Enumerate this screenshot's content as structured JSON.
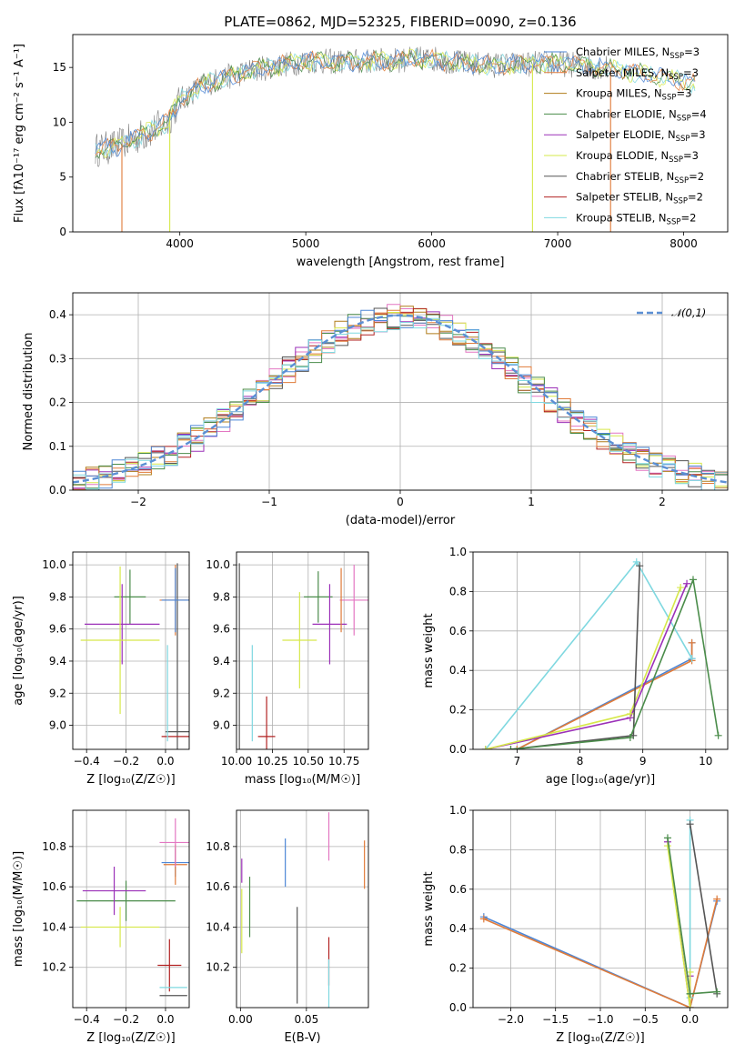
{
  "title": "PLATE=0862, MJD=52325, FIBERID=0090, z=0.136",
  "colors": [
    "#4c86d6",
    "#e07b39",
    "#b07c1a",
    "#4a8c4a",
    "#9b30b8",
    "#d6e84a",
    "#555555",
    "#b22222",
    "#7fd8e0",
    "#e377c2"
  ],
  "chart_data": [
    {
      "type": "line",
      "name": "spectrum",
      "xlabel": "wavelength [Angstrom, rest frame]",
      "ylabel": "Flux [fλ10⁻¹⁷ erg cm⁻² s⁻¹ A⁻¹]",
      "xlim": [
        3150,
        8350
      ],
      "ylim": [
        0,
        18
      ],
      "xticks": [
        4000,
        5000,
        6000,
        7000,
        8000
      ],
      "yticks": [
        0,
        5,
        10,
        15
      ],
      "grid": false,
      "legend_position": "lower-right",
      "legend": [
        "Chabrier MILES, N_SSP=3",
        "Salpeter MILES, N_SSP=3",
        "Kroupa MILES, N_SSP=3",
        "Chabrier ELODIE, N_SSP=4",
        "Salpeter ELODIE, N_SSP=3",
        "Kroupa ELODIE, N_SSP=3",
        "Chabrier STELIB, N_SSP=2",
        "Salpeter STELIB, N_SSP=2",
        "Kroupa STELIB, N_SSP=2"
      ],
      "continuum": {
        "x": [
          3350,
          3500,
          3700,
          3900,
          4000,
          4200,
          4400,
          4600,
          4800,
          5000,
          5300,
          5600,
          6000,
          6300,
          6600,
          6900,
          7200,
          7500,
          7800,
          8100
        ],
        "y": [
          7.5,
          7.8,
          8.8,
          10.0,
          12.0,
          13.5,
          14.2,
          14.8,
          15.2,
          15.6,
          15.5,
          15.6,
          15.8,
          15.3,
          15.2,
          15.4,
          15.2,
          14.8,
          14.2,
          13.5
        ]
      }
    },
    {
      "type": "step",
      "name": "residuals",
      "xlabel": "(data-model)/error",
      "ylabel": "Normed distribution",
      "xlim": [
        -2.5,
        2.5
      ],
      "ylim": [
        0,
        0.45
      ],
      "xticks": [
        -2,
        -1,
        0,
        1,
        2
      ],
      "yticks": [
        0.0,
        0.1,
        0.2,
        0.3,
        0.4
      ],
      "grid": true,
      "legend": [
        "𝒩(0,1)"
      ],
      "legend_position": "top-right",
      "bin_width": 0.1
    },
    {
      "type": "scatter-errorbar",
      "name": "age-vs-Z",
      "xlabel": "Z [log₁₀(Z/Z☉)]",
      "ylabel": "age  [log₁₀(age/yr)]",
      "xlim": [
        -0.47,
        0.12
      ],
      "ylim": [
        8.85,
        10.08
      ],
      "xticks": [
        -0.4,
        -0.2,
        0.0
      ],
      "yticks": [
        9.0,
        9.2,
        9.4,
        9.6,
        9.8,
        10.0
      ],
      "grid": true,
      "points": [
        {
          "x": 0.05,
          "xerr": 0.08,
          "y": 9.78,
          "yerr": 0.22,
          "c": 1
        },
        {
          "x": -0.18,
          "xerr": 0.08,
          "y": 9.8,
          "yerr": 0.17,
          "c": 3
        },
        {
          "x": -0.22,
          "xerr": 0.19,
          "y": 9.63,
          "yerr": 0.25,
          "c": 4
        },
        {
          "x": -0.23,
          "xerr": 0.2,
          "y": 9.53,
          "yerr": 0.46,
          "c": 5
        },
        {
          "x": 0.06,
          "xerr": 0.06,
          "y": 8.96,
          "yerr": 1.05,
          "c": 6
        },
        {
          "x": 0.05,
          "xerr": 0.07,
          "y": 8.93,
          "yerr": 0.0,
          "c": 7
        },
        {
          "x": 0.01,
          "xerr": 0.0,
          "y": 9.2,
          "yerr": 0.3,
          "c": 8
        },
        {
          "x": 0.05,
          "xerr": 0.07,
          "y": 9.78,
          "yerr": 0.2,
          "c": 0
        }
      ]
    },
    {
      "type": "scatter-errorbar",
      "name": "age-vs-mass",
      "xlabel": "mass [log₁₀(M/M☉)]",
      "ylabel": "",
      "xlim": [
        10.0,
        10.92
      ],
      "ylim": [
        8.85,
        10.08
      ],
      "xticks": [
        10.0,
        10.25,
        10.5,
        10.75
      ],
      "yticks": [
        9.0,
        9.2,
        9.4,
        9.6,
        9.8,
        10.0
      ],
      "grid": true,
      "points": [
        {
          "x": 10.57,
          "xerr": 0.1,
          "y": 9.8,
          "yerr": 0.16,
          "c": 3
        },
        {
          "x": 10.65,
          "xerr": 0.12,
          "y": 9.63,
          "yerr": 0.25,
          "c": 4
        },
        {
          "x": 10.44,
          "xerr": 0.12,
          "y": 9.53,
          "yerr": 0.3,
          "c": 5
        },
        {
          "x": 10.02,
          "xerr": 0.0,
          "y": 8.96,
          "yerr": 1.05,
          "c": 6
        },
        {
          "x": 10.21,
          "xerr": 0.06,
          "y": 8.93,
          "yerr": 0.25,
          "c": 7
        },
        {
          "x": 10.11,
          "xerr": 0.0,
          "y": 9.2,
          "yerr": 0.3,
          "c": 8
        },
        {
          "x": 10.82,
          "xerr": 0.1,
          "y": 9.78,
          "yerr": 0.22,
          "c": 9
        },
        {
          "x": 10.73,
          "xerr": 0.0,
          "y": 9.78,
          "yerr": 0.2,
          "c": 1
        }
      ]
    },
    {
      "type": "line",
      "name": "weight-vs-age",
      "xlabel": "age  [log₁₀(age/yr)]",
      "ylabel": "mass weight",
      "xlim": [
        6.3,
        10.35
      ],
      "ylim": [
        0,
        1
      ],
      "xticks": [
        7,
        8,
        9,
        10
      ],
      "yticks": [
        0.0,
        0.2,
        0.4,
        0.6,
        0.8,
        1.0
      ],
      "grid": true,
      "series": [
        {
          "x": [
            7.0,
            9.78,
            9.78
          ],
          "y": [
            0.0,
            0.46,
            0.54
          ],
          "c": 0
        },
        {
          "x": [
            7.0,
            9.78,
            9.78
          ],
          "y": [
            0.0,
            0.45,
            0.54
          ],
          "c": 1
        },
        {
          "x": [
            6.5,
            8.9,
            9.78
          ],
          "y": [
            0.0,
            0.95,
            0.46
          ],
          "c": 8
        },
        {
          "x": [
            6.5,
            8.8,
            9.7
          ],
          "y": [
            0.0,
            0.16,
            0.84
          ],
          "c": 4
        },
        {
          "x": [
            6.5,
            8.8,
            9.6
          ],
          "y": [
            0.0,
            0.18,
            0.82
          ],
          "c": 5
        },
        {
          "x": [
            6.9,
            8.85,
            8.95
          ],
          "y": [
            0.0,
            0.07,
            0.93
          ],
          "c": 6
        },
        {
          "x": [
            6.9,
            8.8,
            9.8,
            10.2
          ],
          "y": [
            0.0,
            0.06,
            0.86,
            0.07
          ],
          "c": 3
        }
      ]
    },
    {
      "type": "scatter-errorbar",
      "name": "mass-vs-Z",
      "xlabel": "Z [log₁₀(Z/Z☉)]",
      "ylabel": "mass [log₁₀(M/M☉)]",
      "xlim": [
        -0.47,
        0.12
      ],
      "ylim": [
        10.0,
        10.98
      ],
      "xticks": [
        -0.4,
        -0.2,
        0.0
      ],
      "yticks": [
        10.2,
        10.4,
        10.6,
        10.8
      ],
      "grid": true,
      "points": [
        {
          "x": 0.05,
          "xerr": 0.07,
          "y": 10.72,
          "yerr": 0.07,
          "c": 0
        },
        {
          "x": 0.05,
          "xerr": 0.06,
          "y": 10.71,
          "yerr": 0.1,
          "c": 1
        },
        {
          "x": -0.2,
          "xerr": 0.25,
          "y": 10.53,
          "yerr": 0.1,
          "c": 3
        },
        {
          "x": -0.26,
          "xerr": 0.16,
          "y": 10.58,
          "yerr": 0.12,
          "c": 4
        },
        {
          "x": -0.23,
          "xerr": 0.2,
          "y": 10.4,
          "yerr": 0.1,
          "c": 5
        },
        {
          "x": 0.04,
          "xerr": 0.07,
          "y": 10.06,
          "yerr": 0.0,
          "c": 6
        },
        {
          "x": 0.02,
          "xerr": 0.06,
          "y": 10.21,
          "yerr": 0.13,
          "c": 7
        },
        {
          "x": 0.04,
          "xerr": 0.07,
          "y": 10.1,
          "yerr": 0.0,
          "c": 8
        },
        {
          "x": 0.05,
          "xerr": 0.08,
          "y": 10.82,
          "yerr": 0.12,
          "c": 9
        }
      ]
    },
    {
      "type": "scatter-errorbar",
      "name": "mass-vs-ebv",
      "xlabel": "E(B-V)",
      "ylabel": "",
      "xlim": [
        -0.003,
        0.097
      ],
      "ylim": [
        10.0,
        10.98
      ],
      "xticks": [
        0.0,
        0.05
      ],
      "yticks": [
        10.2,
        10.4,
        10.6,
        10.8
      ],
      "grid": true,
      "points": [
        {
          "x": 0.034,
          "xerr": 0.0,
          "y": 10.72,
          "yerr": 0.12,
          "c": 0
        },
        {
          "x": 0.094,
          "xerr": 0.0,
          "y": 10.71,
          "yerr": 0.12,
          "c": 1
        },
        {
          "x": 0.007,
          "xerr": 0.0,
          "y": 10.5,
          "yerr": 0.15,
          "c": 3
        },
        {
          "x": 0.001,
          "xerr": 0.0,
          "y": 10.68,
          "yerr": 0.06,
          "c": 4
        },
        {
          "x": 0.001,
          "xerr": 0.0,
          "y": 10.43,
          "yerr": 0.16,
          "c": 5
        },
        {
          "x": 0.043,
          "xerr": 0.0,
          "y": 10.26,
          "yerr": 0.24,
          "c": 6
        },
        {
          "x": 0.067,
          "xerr": 0.0,
          "y": 10.23,
          "yerr": 0.12,
          "c": 7
        },
        {
          "x": 0.067,
          "xerr": 0.0,
          "y": 10.08,
          "yerr": 0.16,
          "c": 8
        },
        {
          "x": 0.067,
          "xerr": 0.0,
          "y": 10.85,
          "yerr": 0.12,
          "c": 9
        }
      ]
    },
    {
      "type": "line",
      "name": "weight-vs-Z",
      "xlabel": "Z [log₁₀(Z/Z☉)]",
      "ylabel": "mass weight",
      "xlim": [
        -2.42,
        0.42
      ],
      "ylim": [
        0,
        1
      ],
      "xticks": [
        -2.0,
        -1.5,
        -1.0,
        -0.5,
        0.0
      ],
      "yticks": [
        0.0,
        0.2,
        0.4,
        0.6,
        0.8,
        1.0
      ],
      "grid": true,
      "series": [
        {
          "x": [
            -2.3,
            0.0,
            0.3
          ],
          "y": [
            0.46,
            0.0,
            0.54
          ],
          "c": 0
        },
        {
          "x": [
            -2.3,
            0.0,
            0.3
          ],
          "y": [
            0.45,
            0.0,
            0.55
          ],
          "c": 1
        },
        {
          "x": [
            0.0,
            0.0
          ],
          "y": [
            0.05,
            0.95
          ],
          "c": 8
        },
        {
          "x": [
            -0.25,
            0.0,
            0.0
          ],
          "y": [
            0.84,
            0.0,
            0.16
          ],
          "c": 4
        },
        {
          "x": [
            -0.25,
            0.0,
            0.0
          ],
          "y": [
            0.82,
            0.0,
            0.18
          ],
          "c": 5
        },
        {
          "x": [
            0.0,
            0.3
          ],
          "y": [
            0.93,
            0.07
          ],
          "c": 6
        },
        {
          "x": [
            -0.25,
            0.0,
            0.0,
            0.3
          ],
          "y": [
            0.86,
            0.07,
            0.07,
            0.08
          ],
          "c": 3
        }
      ]
    }
  ]
}
